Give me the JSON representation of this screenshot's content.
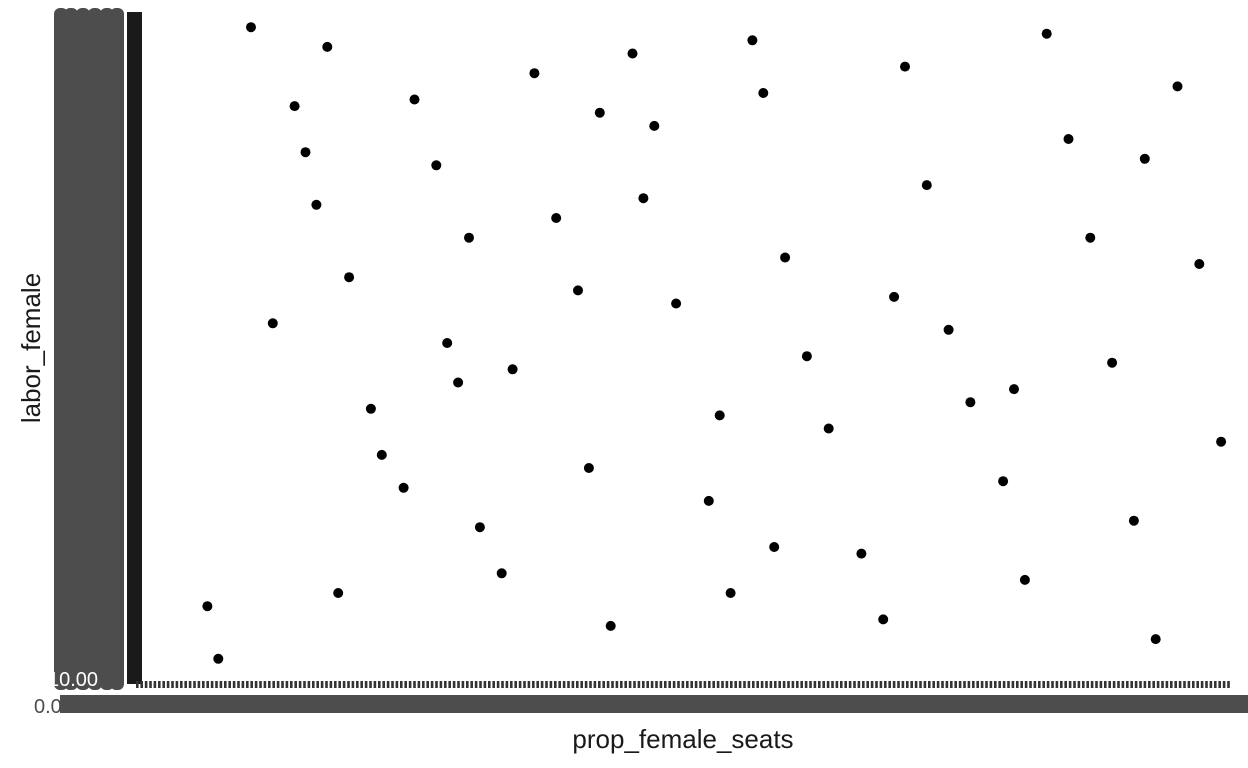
{
  "chart_data": {
    "type": "scatter",
    "xlabel": "prop_female_seats",
    "ylabel": "labor_female",
    "xlim": [
      0,
      1
    ],
    "ylim": [
      0,
      1
    ],
    "grid": false,
    "legend": "none",
    "x_ticks": {
      "first_label": "0.00",
      "note_overplotted": true
    },
    "y_ticks": {
      "first_label": "10.00",
      "note_overplotted": true
    },
    "point_color": "#000000",
    "tick_label_color": "#4d4d4d",
    "points": [
      [
        0.06,
        0.1
      ],
      [
        0.07,
        0.02
      ],
      [
        0.1,
        0.98
      ],
      [
        0.14,
        0.86
      ],
      [
        0.15,
        0.79
      ],
      [
        0.16,
        0.71
      ],
      [
        0.17,
        0.95
      ],
      [
        0.19,
        0.6
      ],
      [
        0.21,
        0.4
      ],
      [
        0.22,
        0.33
      ],
      [
        0.25,
        0.87
      ],
      [
        0.27,
        0.77
      ],
      [
        0.28,
        0.5
      ],
      [
        0.29,
        0.44
      ],
      [
        0.31,
        0.22
      ],
      [
        0.33,
        0.15
      ],
      [
        0.36,
        0.91
      ],
      [
        0.38,
        0.69
      ],
      [
        0.4,
        0.58
      ],
      [
        0.41,
        0.31
      ],
      [
        0.43,
        0.07
      ],
      [
        0.45,
        0.94
      ],
      [
        0.47,
        0.83
      ],
      [
        0.49,
        0.56
      ],
      [
        0.52,
        0.26
      ],
      [
        0.54,
        0.12
      ],
      [
        0.56,
        0.96
      ],
      [
        0.57,
        0.88
      ],
      [
        0.59,
        0.63
      ],
      [
        0.61,
        0.48
      ],
      [
        0.63,
        0.37
      ],
      [
        0.66,
        0.18
      ],
      [
        0.68,
        0.08
      ],
      [
        0.7,
        0.92
      ],
      [
        0.72,
        0.74
      ],
      [
        0.74,
        0.52
      ],
      [
        0.76,
        0.41
      ],
      [
        0.79,
        0.29
      ],
      [
        0.81,
        0.14
      ],
      [
        0.83,
        0.97
      ],
      [
        0.85,
        0.81
      ],
      [
        0.87,
        0.66
      ],
      [
        0.89,
        0.47
      ],
      [
        0.91,
        0.23
      ],
      [
        0.93,
        0.05
      ],
      [
        0.95,
        0.89
      ],
      [
        0.97,
        0.62
      ],
      [
        0.99,
        0.35
      ],
      [
        0.12,
        0.53
      ],
      [
        0.24,
        0.28
      ],
      [
        0.34,
        0.46
      ],
      [
        0.46,
        0.72
      ],
      [
        0.58,
        0.19
      ],
      [
        0.69,
        0.57
      ],
      [
        0.8,
        0.43
      ],
      [
        0.92,
        0.78
      ],
      [
        0.18,
        0.12
      ],
      [
        0.3,
        0.66
      ],
      [
        0.42,
        0.85
      ],
      [
        0.53,
        0.39
      ]
    ]
  }
}
